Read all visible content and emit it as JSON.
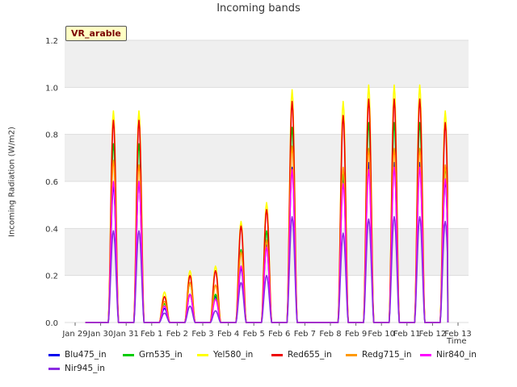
{
  "chart_data": {
    "type": "line",
    "title": "Incoming bands",
    "ylabel": "Incoming Radiation (W/m2)",
    "xlabel": "Time",
    "badge": "VR_arable",
    "ylim": [
      0,
      1.2
    ],
    "yticks": [
      "0.0",
      "0.2",
      "0.4",
      "0.6",
      "0.8",
      "1.0",
      "1.2"
    ],
    "xticks": [
      "Jan 29",
      "Jan 30",
      "Jan 31",
      "Feb 1",
      "Feb 2",
      "Feb 3",
      "Feb 4",
      "Feb 5",
      "Feb 6",
      "Feb 7",
      "Feb 8",
      "Feb 9",
      "Feb 10",
      "Feb 11",
      "Feb 12",
      "Feb 13"
    ],
    "day_peak_index": [
      0.5,
      1.5,
      2.5,
      3.5,
      4.5,
      5.5,
      6.5,
      7.5,
      8.5,
      9.5,
      10.5,
      11.5,
      12.5,
      13.5,
      14.5
    ],
    "x_range_days": [
      0,
      15
    ],
    "series": [
      {
        "name": "Blu475_in",
        "color": "#0000ee",
        "peaks": [
          0,
          0.58,
          0.6,
          0.06,
          0.12,
          0.11,
          0.23,
          0.33,
          0.66,
          0,
          0.62,
          0.68,
          0.68,
          0.68,
          0.6
        ]
      },
      {
        "name": "Grn535_in",
        "color": "#00cc00",
        "peaks": [
          0,
          0.76,
          0.76,
          0.08,
          0.17,
          0.12,
          0.31,
          0.39,
          0.83,
          0,
          0.63,
          0.85,
          0.85,
          0.85,
          0.66
        ]
      },
      {
        "name": "Yel580_in",
        "color": "#ffff00",
        "peaks": [
          0,
          0.9,
          0.9,
          0.13,
          0.22,
          0.24,
          0.43,
          0.51,
          0.99,
          0,
          0.94,
          1.01,
          1.01,
          1.01,
          0.9
        ]
      },
      {
        "name": "Red655_in",
        "color": "#ee0000",
        "peaks": [
          0,
          0.86,
          0.86,
          0.11,
          0.2,
          0.22,
          0.41,
          0.48,
          0.94,
          0,
          0.88,
          0.95,
          0.95,
          0.95,
          0.85
        ]
      },
      {
        "name": "Redg715_in",
        "color": "#ff9900",
        "peaks": [
          0,
          0.69,
          0.67,
          0.09,
          0.17,
          0.16,
          0.3,
          0.35,
          0.75,
          0,
          0.66,
          0.74,
          0.74,
          0.74,
          0.67
        ]
      },
      {
        "name": "Nir840_in",
        "color": "#ff00ff",
        "peaks": [
          0,
          0.6,
          0.6,
          0.07,
          0.12,
          0.1,
          0.24,
          0.32,
          0.65,
          0,
          0.59,
          0.65,
          0.66,
          0.66,
          0.61
        ]
      },
      {
        "name": "Nir945_in",
        "color": "#8a2be2",
        "peaks": [
          0,
          0.39,
          0.39,
          0.04,
          0.07,
          0.05,
          0.17,
          0.2,
          0.45,
          0,
          0.38,
          0.44,
          0.45,
          0.45,
          0.43
        ]
      }
    ]
  }
}
